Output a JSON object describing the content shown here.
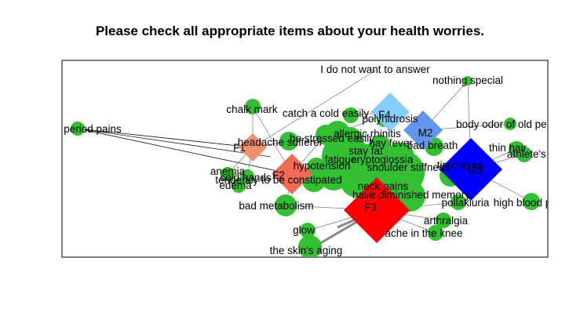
{
  "title": "Please check all appropriate items about your health worries.",
  "colors": {
    "item_node": "#32c032",
    "edge": "#777777",
    "edge_strong": "#888888",
    "F1": "#f08f70",
    "F2": "#f06a55",
    "F3": "#ff0000",
    "F4": "#87cefa",
    "M2": "#6495ed",
    "M3": "#0000ff"
  },
  "groups": [
    {
      "id": "F1",
      "label": "F1",
      "color": "#f08f70"
    },
    {
      "id": "F2",
      "label": "F2",
      "color": "#f06a55"
    },
    {
      "id": "F3",
      "label": "F3",
      "color": "#ff0000"
    },
    {
      "id": "F4",
      "label": "F4",
      "color": "#87cefa"
    },
    {
      "id": "M2",
      "label": "M2",
      "color": "#6495ed"
    },
    {
      "id": "M3",
      "label": "M3",
      "color": "#0000ff"
    }
  ],
  "items": [
    "I do not want to answer",
    "nothing special",
    "polyhidrosis",
    "chalk mark",
    "catch a cold easily",
    "period pains",
    "body odor of old person",
    "allergic rhinitis",
    "headache sufferer",
    "be stressed easily",
    "hay fever",
    "bad breath",
    "thin hair",
    "athlete's foot",
    "stay fat",
    "fatigue",
    "hypotension",
    "cryptoglossia",
    "anemia",
    "tendency to be constipated",
    "cold hands",
    "edema",
    "shoulder stiffness",
    "tired eyes",
    "neck pains",
    "have diminished memory",
    "pollakiuria",
    "high blood pressure",
    "bad metabolism",
    "arthralgia",
    "glow",
    "ache in the knee",
    "the skin's aging"
  ]
}
